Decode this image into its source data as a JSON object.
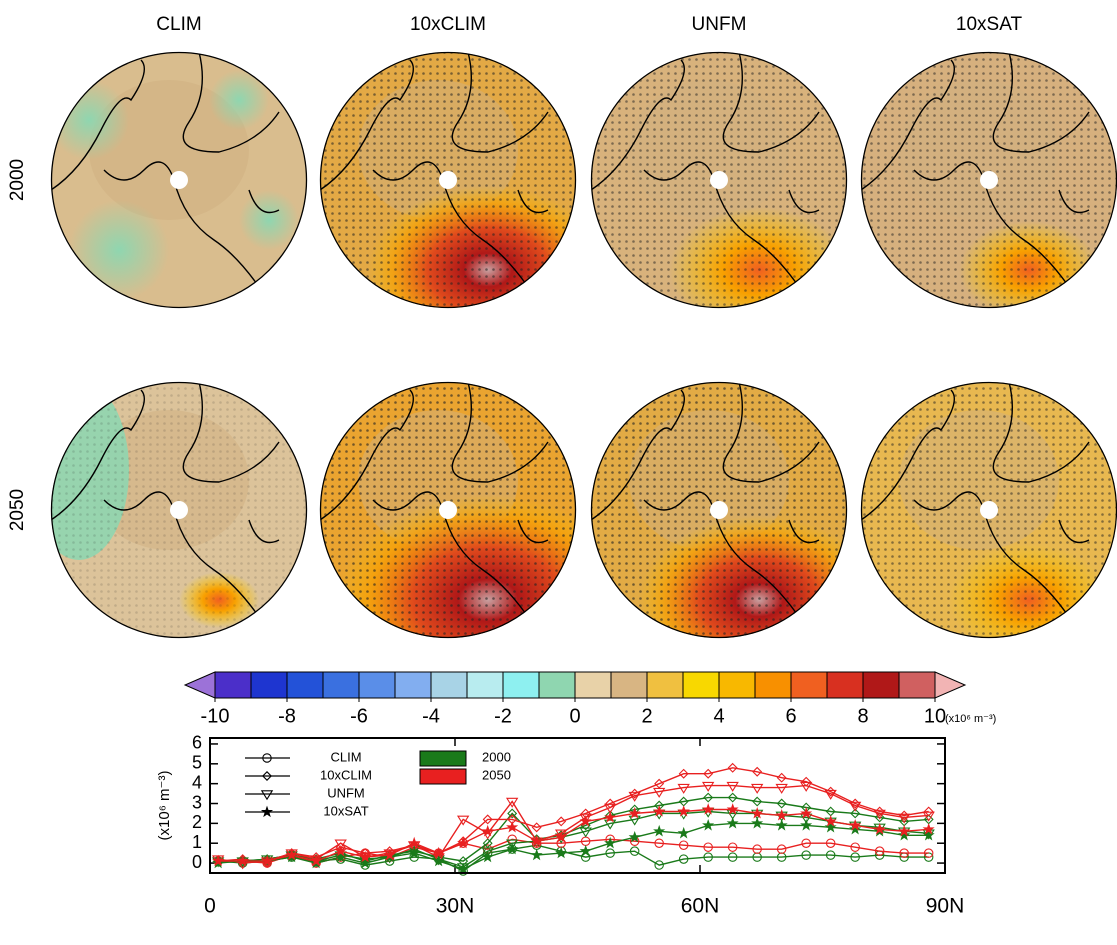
{
  "panels": {
    "columns": [
      "CLIM",
      "10xCLIM",
      "UNFM",
      "10xSAT"
    ],
    "rows": [
      "2000",
      "2050"
    ]
  },
  "colorbar": {
    "ticks": [
      -10,
      -8,
      -6,
      -4,
      -2,
      0,
      2,
      4,
      6,
      8,
      10
    ],
    "range": [
      -10,
      10
    ],
    "unit": "(x10⁶ m⁻³)",
    "under": "#9c72d8",
    "over": "#f2b4b4",
    "colors": [
      "#4b2fc9",
      "#1e35d0",
      "#2352d8",
      "#3a70e0",
      "#5a8ee8",
      "#82aef0",
      "#a8d3e6",
      "#b8ecef",
      "#8ef0f0",
      "#8fd6b0",
      "#e8d2a8",
      "#d8b583",
      "#f0c040",
      "#f8d800",
      "#f8b800",
      "#f89000",
      "#f06020",
      "#d83020",
      "#b01818",
      "#d06060"
    ]
  },
  "chart_data": {
    "type": "line",
    "ylabel": "(x10⁶ m⁻³)",
    "xlim": [
      0,
      90
    ],
    "ylim": [
      -0.5,
      6.3
    ],
    "xticks": [
      0,
      {
        "value": 30,
        "label": "30N"
      },
      {
        "value": 60,
        "label": "60N"
      },
      {
        "value": 90,
        "label": "90N"
      }
    ],
    "yticks": [
      0,
      1,
      2,
      3,
      4,
      5,
      6
    ],
    "x": [
      1,
      4,
      7,
      10,
      13,
      16,
      19,
      22,
      25,
      28,
      31,
      34,
      37,
      40,
      43,
      46,
      49,
      52,
      55,
      58,
      61,
      64,
      67,
      70,
      73,
      76,
      79,
      82,
      85,
      88
    ],
    "years": [
      {
        "name": "2000",
        "color": "#1a7a1a"
      },
      {
        "name": "2050",
        "color": "#e82020"
      }
    ],
    "models": [
      {
        "name": "CLIM",
        "marker": "circle",
        "values": [
          [
            0.1,
            0,
            0.1,
            0.3,
            0.1,
            0.2,
            -0.1,
            0.1,
            0.3,
            0.2,
            -0.4,
            0.5,
            0.7,
            0.9,
            0.6,
            0.3,
            0.5,
            0.6,
            -0.1,
            0.2,
            0.3,
            0.3,
            0.3,
            0.3,
            0.4,
            0.4,
            0.3,
            0.4,
            0.3,
            0.3
          ],
          [
            0.1,
            0.1,
            0,
            0.4,
            0,
            0.3,
            0.5,
            0.3,
            0.8,
            0.5,
            1.0,
            0.7,
            1.2,
            1.0,
            1.0,
            1.1,
            1.2,
            1.1,
            1.0,
            0.9,
            0.8,
            0.8,
            0.7,
            0.7,
            1.0,
            1.0,
            0.8,
            0.6,
            0.5,
            0.5
          ]
        ]
      },
      {
        "name": "10xCLIM",
        "marker": "diamond",
        "values": [
          [
            0.1,
            0.1,
            0.2,
            0.4,
            0.2,
            0.5,
            0.1,
            0.4,
            0.6,
            0.3,
            0.1,
            1.0,
            2.5,
            1.2,
            1.4,
            1.9,
            2.4,
            2.7,
            2.9,
            3.1,
            3.3,
            3.3,
            3.1,
            3.0,
            2.8,
            2.6,
            2.5,
            2.3,
            2.1,
            2.2
          ],
          [
            0.1,
            0.2,
            0,
            0.5,
            0.3,
            0.8,
            0.5,
            0.6,
            0.9,
            0.5,
            1.1,
            2.2,
            2.2,
            1.8,
            2.1,
            2.5,
            3.0,
            3.5,
            4.0,
            4.5,
            4.5,
            4.8,
            4.6,
            4.3,
            4.1,
            3.6,
            3.0,
            2.6,
            2.4,
            2.6
          ]
        ]
      },
      {
        "name": "UNFM",
        "marker": "triangle",
        "values": [
          [
            0.1,
            0.1,
            0.2,
            0.4,
            0.1,
            0.4,
            0.2,
            0.3,
            0.7,
            0.2,
            -0.2,
            0.6,
            1.0,
            1.1,
            1.3,
            1.6,
            2.0,
            2.2,
            2.5,
            2.5,
            2.6,
            2.5,
            2.5,
            2.4,
            2.3,
            2.1,
            1.9,
            1.8,
            1.6,
            1.5
          ],
          [
            0.2,
            0,
            0.1,
            0.5,
            0.2,
            1.0,
            0.3,
            0.5,
            0.9,
            0.3,
            2.2,
            1.5,
            3.1,
            1.1,
            1.5,
            2.3,
            2.8,
            3.4,
            3.6,
            3.8,
            3.9,
            3.9,
            3.8,
            3.8,
            3.9,
            3.5,
            2.9,
            2.5,
            2.3,
            2.4
          ]
        ]
      },
      {
        "name": "10xSAT",
        "marker": "star",
        "values": [
          [
            0,
            0.1,
            0.1,
            0.3,
            0,
            0.3,
            0,
            0.3,
            0.5,
            0.1,
            -0.3,
            0.3,
            0.7,
            0.4,
            0.5,
            0.6,
            1.0,
            1.3,
            1.6,
            1.5,
            1.9,
            2.0,
            2.0,
            1.9,
            1.9,
            1.8,
            1.7,
            1.6,
            1.4,
            1.4
          ],
          [
            0.1,
            0.1,
            0.1,
            0.4,
            0.1,
            0.6,
            0.3,
            0.4,
            1.0,
            0.5,
            1.0,
            1.6,
            1.8,
            1.1,
            1.3,
            2.1,
            2.3,
            2.5,
            2.6,
            2.6,
            2.7,
            2.7,
            2.5,
            2.4,
            2.5,
            2.1,
            1.9,
            1.7,
            1.6,
            1.7
          ]
        ]
      }
    ]
  }
}
